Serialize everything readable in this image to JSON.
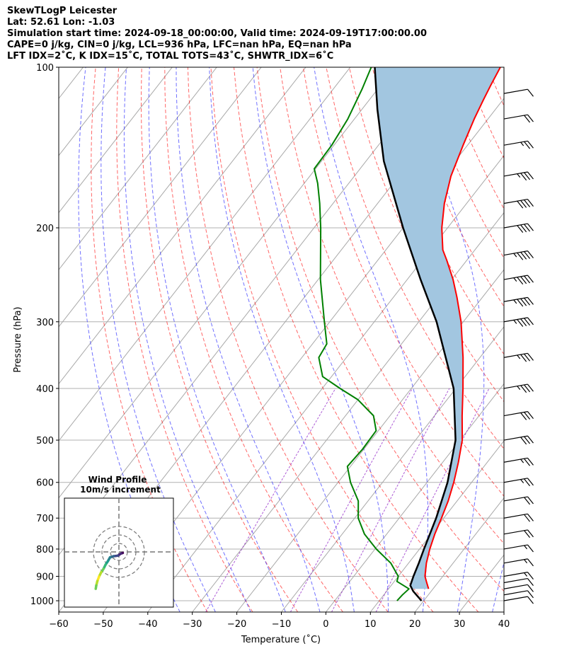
{
  "header": {
    "line1": "SkewTLogP Leicester",
    "line2": "Lat: 52.61   Lon: -1.03",
    "line3": "Simulation start time: 2024-09-18_00:00:00, Valid time: 2024-09-19T17:00:00.00",
    "line4": "CAPE=0 j/kg, CIN=0 j/kg, LCL=936 hPa, LFC=nan hPa, EQ=nan hPa",
    "line5": "LFT IDX=2˚C, K IDX=15˚C, TOTAL TOTS=43˚C, SHWTR_IDX=6˚C"
  },
  "chart_data": {
    "type": "line",
    "subtype": "skew-T log-P",
    "xlabel": "Temperature (˚C)",
    "ylabel": "Pressure (hPa)",
    "xlim": [
      -60,
      40
    ],
    "ylim": [
      1050,
      100
    ],
    "yscale": "log",
    "xticks": [
      -60,
      -50,
      -40,
      -30,
      -20,
      -10,
      0,
      10,
      20,
      30,
      40
    ],
    "yticks": [
      1000,
      900,
      800,
      700,
      600,
      500,
      400,
      300,
      200,
      100
    ],
    "series": [
      {
        "color": "#ff0000",
        "points": [
          [
            950,
            19.0
          ],
          [
            925,
            17.5
          ],
          [
            900,
            16.0
          ],
          [
            850,
            14.0
          ],
          [
            800,
            12.3
          ],
          [
            750,
            10.8
          ],
          [
            700,
            9.5
          ],
          [
            650,
            8.0
          ],
          [
            600,
            6.0
          ],
          [
            550,
            3.5
          ],
          [
            500,
            0.5
          ],
          [
            450,
            -3.8
          ],
          [
            400,
            -8.4
          ],
          [
            350,
            -13.8
          ],
          [
            300,
            -20.5
          ],
          [
            270,
            -25.7
          ],
          [
            250,
            -29.7
          ],
          [
            230,
            -34.5
          ],
          [
            220,
            -37.2
          ],
          [
            200,
            -41.3
          ],
          [
            180,
            -45.0
          ],
          [
            160,
            -48.3
          ],
          [
            140,
            -51.0
          ],
          [
            125,
            -53.1
          ],
          [
            115,
            -54.4
          ],
          [
            108,
            -55.3
          ],
          [
            100,
            -56.3
          ]
        ]
      },
      {
        "color": "#008000",
        "points": [
          [
            1000,
            14.0
          ],
          [
            975,
            14.2
          ],
          [
            950,
            14.6
          ],
          [
            920,
            10.6
          ],
          [
            900,
            10.0
          ],
          [
            850,
            6.0
          ],
          [
            800,
            0.3
          ],
          [
            750,
            -5.0
          ],
          [
            700,
            -9.2
          ],
          [
            650,
            -12.2
          ],
          [
            600,
            -17.2
          ],
          [
            560,
            -20.7
          ],
          [
            520,
            -20.3
          ],
          [
            480,
            -20.5
          ],
          [
            450,
            -23.7
          ],
          [
            420,
            -30.0
          ],
          [
            400,
            -36.0
          ],
          [
            380,
            -42.0
          ],
          [
            350,
            -46.2
          ],
          [
            330,
            -46.8
          ],
          [
            300,
            -51.2
          ],
          [
            250,
            -59.5
          ],
          [
            200,
            -68.5
          ],
          [
            180,
            -73.0
          ],
          [
            165,
            -77.0
          ],
          [
            155,
            -80.3
          ],
          [
            140,
            -80.5
          ],
          [
            125,
            -81.5
          ],
          [
            110,
            -83.5
          ],
          [
            100,
            -85.3
          ]
        ]
      },
      {
        "color": "#000000",
        "points": [
          [
            1000,
            19.5
          ],
          [
            960,
            16.0
          ],
          [
            936,
            14.3
          ],
          [
            900,
            13.4
          ],
          [
            850,
            12.3
          ],
          [
            800,
            11.0
          ],
          [
            700,
            8.3
          ],
          [
            600,
            4.6
          ],
          [
            500,
            -1.0
          ],
          [
            400,
            -10.5
          ],
          [
            300,
            -26.0
          ],
          [
            250,
            -37.0
          ],
          [
            200,
            -50.0
          ],
          [
            150,
            -66.0
          ],
          [
            120,
            -76.5
          ],
          [
            100,
            -84.5
          ]
        ]
      }
    ],
    "fill_between": {
      "upper": "#ff0000 series",
      "lower": "#000000 series",
      "color": "#a2c6e0"
    },
    "wind_barbs": [
      {
        "p": 1000,
        "speed_kt": 10
      },
      {
        "p": 975,
        "speed_kt": 10
      },
      {
        "p": 950,
        "speed_kt": 10
      },
      {
        "p": 925,
        "speed_kt": 10
      },
      {
        "p": 900,
        "speed_kt": 15
      },
      {
        "p": 850,
        "speed_kt": 15
      },
      {
        "p": 800,
        "speed_kt": 15
      },
      {
        "p": 750,
        "speed_kt": 20
      },
      {
        "p": 700,
        "speed_kt": 20
      },
      {
        "p": 650,
        "speed_kt": 20
      },
      {
        "p": 600,
        "speed_kt": 25
      },
      {
        "p": 550,
        "speed_kt": 25
      },
      {
        "p": 500,
        "speed_kt": 30
      },
      {
        "p": 450,
        "speed_kt": 30
      },
      {
        "p": 400,
        "speed_kt": 35
      },
      {
        "p": 350,
        "speed_kt": 35
      },
      {
        "p": 300,
        "speed_kt": 45
      },
      {
        "p": 275,
        "speed_kt": 45
      },
      {
        "p": 250,
        "speed_kt": 45
      },
      {
        "p": 225,
        "speed_kt": 45
      },
      {
        "p": 200,
        "speed_kt": 40
      },
      {
        "p": 180,
        "speed_kt": 40
      },
      {
        "p": 160,
        "speed_kt": 35
      },
      {
        "p": 140,
        "speed_kt": 25
      },
      {
        "p": 125,
        "speed_kt": 20
      },
      {
        "p": 112,
        "speed_kt": 10
      }
    ],
    "inset": {
      "title_line1": "Wind Profile",
      "title_line2": "10m/s increment",
      "rings_ms": [
        10,
        20,
        30
      ],
      "hodograph_uv": [
        [
          3.5,
          5.5
        ],
        [
          2,
          5
        ],
        [
          -1,
          3
        ],
        [
          -5,
          2.5
        ],
        [
          -8,
          1.5
        ],
        [
          -10,
          -2
        ],
        [
          -12,
          -5
        ],
        [
          -14,
          -9
        ],
        [
          -16,
          -12
        ],
        [
          -18,
          -16
        ],
        [
          -19.5,
          -20
        ],
        [
          -20.5,
          -24
        ],
        [
          -21,
          -27
        ]
      ]
    }
  }
}
